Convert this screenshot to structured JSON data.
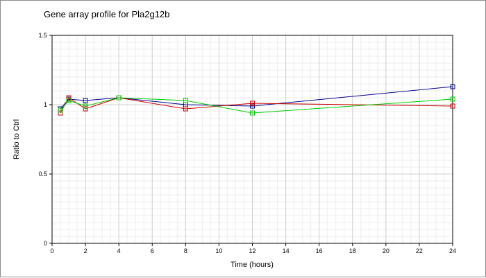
{
  "chart_data": {
    "type": "line",
    "title": "Gene array profile for Pla2g12b",
    "xlabel": "Time (hours)",
    "ylabel": "Ratio to Ctrl",
    "xlim": [
      0,
      24
    ],
    "ylim": [
      0,
      1.5
    ],
    "xticks": [
      "0",
      "2",
      "4",
      "6",
      "8",
      "10",
      "12",
      "14",
      "16",
      "18",
      "20",
      "22",
      "24"
    ],
    "yticks": [
      "0",
      "0.5",
      "1",
      "1.5"
    ],
    "grid": true,
    "series": [
      {
        "color": "#00008b",
        "x": [
          0.5,
          1,
          2,
          4,
          8,
          12,
          24
        ],
        "y": [
          0.97,
          1.04,
          1.03,
          1.05,
          1.0,
          0.99,
          1.13
        ]
      },
      {
        "color": "#cc0000",
        "x": [
          0.5,
          1,
          2,
          4,
          8,
          12,
          24
        ],
        "y": [
          0.94,
          1.05,
          0.97,
          1.05,
          0.97,
          1.01,
          0.99
        ]
      },
      {
        "color": "#00cc00",
        "x": [
          0.5,
          1,
          2,
          4,
          8,
          12,
          24
        ],
        "y": [
          0.96,
          1.03,
          0.99,
          1.05,
          1.03,
          0.94,
          1.04
        ]
      }
    ]
  }
}
